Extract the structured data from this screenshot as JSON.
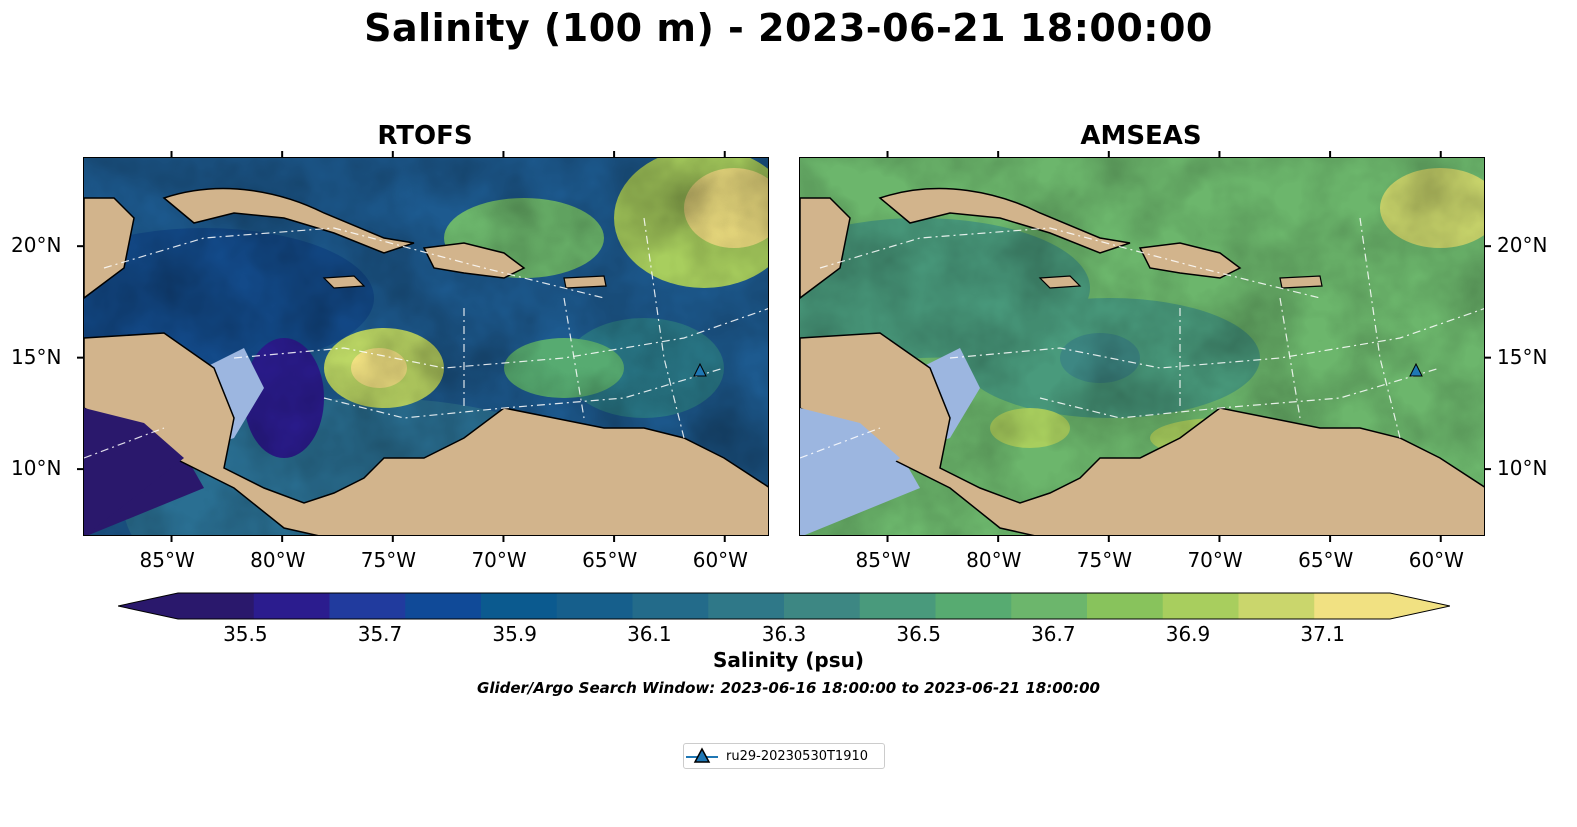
{
  "figure": {
    "title": "Salinity (100 m) - 2023-06-21 18:00:00",
    "panels": [
      {
        "title": "RTOFS",
        "model": "rtofs"
      },
      {
        "title": "AMSEAS",
        "model": "amseas"
      }
    ],
    "lon_ticks": [
      "85°W",
      "80°W",
      "75°W",
      "70°W",
      "65°W",
      "60°W"
    ],
    "lat_ticks": [
      "20°N",
      "15°N",
      "10°N"
    ],
    "map_extent": {
      "lon": [
        -89,
        -58
      ],
      "lat": [
        7,
        24
      ]
    },
    "land_color": "#d2b48c",
    "shallow_water_color": "#9cb6e0",
    "colormap": "haline"
  },
  "colorbar": {
    "label": "Salinity (psu)",
    "min": 35.4,
    "max": 37.2,
    "step": 0.1,
    "extend": "both",
    "tick_labels": [
      "35.5",
      "35.7",
      "35.9",
      "36.1",
      "36.3",
      "36.5",
      "36.7",
      "36.9",
      "37.1"
    ],
    "colors": [
      "#2a186c",
      "#2b1c8e",
      "#213b9e",
      "#104a98",
      "#0b5a8f",
      "#165f8c",
      "#236b8a",
      "#2f7888",
      "#3d8783",
      "#499a7c",
      "#57ab71",
      "#6cb66c",
      "#88c35c",
      "#a8ce5e",
      "#cad66c",
      "#f1e182"
    ]
  },
  "search_window": "Glider/Argo Search Window: 2023-06-16 18:00:00 to 2023-06-21 18:00:00",
  "legend": {
    "entries": [
      {
        "label": "ru29-20230530T1910",
        "marker": "triangle",
        "color": "#1f77b4"
      }
    ]
  },
  "glider": {
    "lon": -61.2,
    "lat": 14.3
  }
}
